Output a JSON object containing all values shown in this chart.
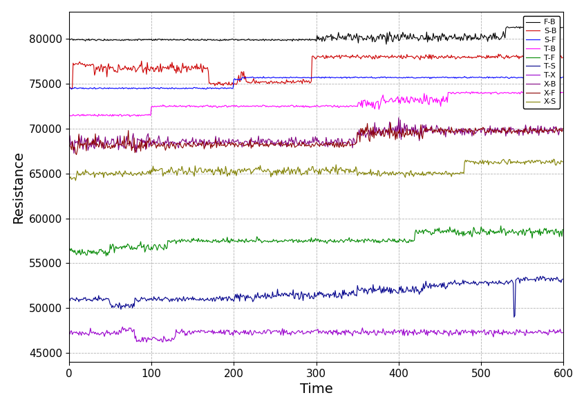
{
  "title": "",
  "xlabel": "Time",
  "ylabel": "Resistance",
  "xlim": [
    0,
    600
  ],
  "ylim": [
    44000,
    83000
  ],
  "xticks": [
    0,
    100,
    200,
    300,
    400,
    500,
    600
  ],
  "yticks": [
    45000,
    50000,
    55000,
    60000,
    65000,
    70000,
    75000,
    80000
  ],
  "grid": true,
  "legend_labels": [
    "F-B",
    "S-B",
    "S-F",
    "T-B",
    "T-F",
    "T-S",
    "T-X",
    "X-B",
    "X-F",
    "X-S"
  ],
  "series_colors": [
    "#000000",
    "#cc0000",
    "#0000ff",
    "#ff00ff",
    "#008800",
    "#00008b",
    "#9900cc",
    "#800080",
    "#8b0000",
    "#808000"
  ],
  "background_color": "#ffffff",
  "figsize": [
    8.32,
    5.81
  ],
  "dpi": 100,
  "legend_fontsize": 8,
  "axis_label_fontsize": 14,
  "tick_fontsize": 11
}
